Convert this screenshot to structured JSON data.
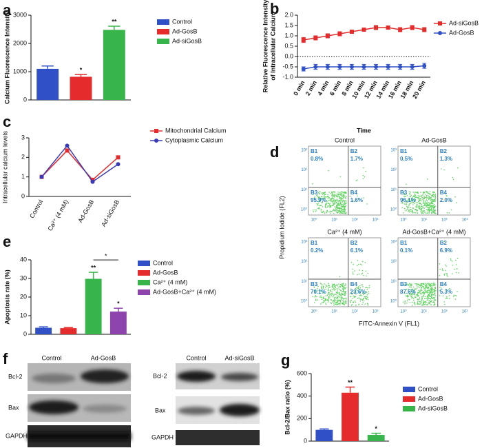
{
  "chart_data": [
    {
      "panel": "a",
      "type": "bar",
      "ylabel": "Calcium Fluorescence Intensity",
      "ylim": [
        0,
        3000
      ],
      "yticks": [
        0,
        1000,
        2000,
        3000
      ],
      "series": [
        {
          "name": "Control",
          "color": "#3050c8",
          "values": [
            1100
          ],
          "errors": [
            100
          ]
        },
        {
          "name": "Ad-GosB",
          "color": "#e52b2b",
          "values": [
            820
          ],
          "errors": [
            80
          ],
          "annotation": "*"
        },
        {
          "name": "Ad-siGosB",
          "color": "#38b54a",
          "values": [
            2480
          ],
          "errors": [
            130
          ],
          "annotation": "**"
        }
      ]
    },
    {
      "panel": "b",
      "type": "line",
      "ylabel": [
        "Relative Fluorescence Intensity",
        "of Intracellular Calcium"
      ],
      "xlabel": "Time",
      "categories": [
        "0 min",
        "2 min",
        "4 min",
        "6 min",
        "8 min",
        "10 min",
        "12 min",
        "14 min",
        "16 min",
        "18 min",
        "20 min"
      ],
      "ylim": [
        -1,
        2
      ],
      "yticks": [
        {
          "value": -1,
          "label": "-1.0"
        },
        {
          "value": -0.5,
          "label": "-0.5"
        },
        {
          "value": 0,
          "label": "0.0"
        },
        0.5,
        {
          "value": 1,
          "label": "1.0"
        },
        1.5,
        {
          "value": 2,
          "label": "2.0"
        }
      ],
      "zero_line": true,
      "series": [
        {
          "name": "Ad-siGosB",
          "color": "#e52b2b",
          "marker": "square",
          "values": [
            0.8,
            0.9,
            1.0,
            1.1,
            1.2,
            1.3,
            1.4,
            1.4,
            1.3,
            1.4,
            1.3
          ],
          "errors": [
            0.12,
            0.1,
            0.1,
            0.1,
            0.08,
            0.08,
            0.1,
            0.08,
            0.1,
            0.1,
            0.1
          ]
        },
        {
          "name": "Ad-GosB",
          "color": "#3050c8",
          "marker": "circle",
          "values": [
            -0.6,
            -0.5,
            -0.5,
            -0.5,
            -0.5,
            -0.5,
            -0.5,
            -0.5,
            -0.5,
            -0.5,
            -0.45
          ],
          "errors": [
            0.1,
            0.12,
            0.12,
            0.12,
            0.12,
            0.12,
            0.12,
            0.12,
            0.12,
            0.12,
            0.12
          ]
        }
      ]
    },
    {
      "panel": "c",
      "type": "line",
      "ylabel": "Intracellular calcium levels",
      "categories": [
        "Control",
        "Ca²⁺ (4 mM)",
        "Ad-GosB",
        "Ad-siGosB"
      ],
      "ylim": [
        0,
        3
      ],
      "yticks": [
        0,
        1,
        2,
        3
      ],
      "series": [
        {
          "name": "Mitochondrial Calcium",
          "color": "#e52b2b",
          "marker": "square",
          "values": [
            1,
            2.35,
            0.85,
            2.0
          ]
        },
        {
          "name": "Cytoplasmic Calcium",
          "color": "#3a3ab8",
          "marker": "circle",
          "values": [
            1,
            2.6,
            0.75,
            1.65
          ]
        }
      ]
    },
    {
      "panel": "e",
      "type": "bar",
      "ylabel": "Apoptosis rate (%)",
      "ylim": [
        0,
        40
      ],
      "yticks": [
        0,
        10,
        20,
        30,
        40
      ],
      "bracket_label": "*",
      "series": [
        {
          "name": "Control",
          "color": "#3050c8",
          "values": [
            3.5
          ],
          "errors": [
            0.5
          ]
        },
        {
          "name": "Ad-GosB",
          "color": "#e52b2b",
          "values": [
            3.3
          ],
          "errors": [
            0.3
          ]
        },
        {
          "name": "Ca²⁺ (4 mM)",
          "color": "#38b54a",
          "values": [
            29.8
          ],
          "errors": [
            3.5
          ],
          "annotation": "**"
        },
        {
          "name": "Ad-GosB+Ca²⁺ (4 mM)",
          "color": "#8e44ad",
          "values": [
            12.2
          ],
          "errors": [
            1.8
          ],
          "annotation": "*"
        }
      ]
    },
    {
      "panel": "g",
      "type": "bar",
      "ylabel": "Bcl-2/Bax ratio (%)",
      "ylim": [
        0,
        600
      ],
      "yticks": [
        0,
        200,
        400,
        600
      ],
      "series": [
        {
          "name": "Control",
          "color": "#3050c8",
          "values": [
            100
          ],
          "errors": [
            8
          ]
        },
        {
          "name": "Ad-GosB",
          "color": "#e52b2b",
          "values": [
            430
          ],
          "errors": [
            50
          ],
          "annotation": "**"
        },
        {
          "name": "Ad-siGosB",
          "color": "#38b54a",
          "values": [
            55
          ],
          "errors": [
            15
          ],
          "annotation": "*"
        }
      ]
    }
  ],
  "flow": {
    "panel": "d",
    "ylabel": "Propidium Iodide (FL2)",
    "xlabel": "FITC-Annexin V (FL1)",
    "ticks": [
      "10⁰",
      "10¹",
      "10²",
      "10³"
    ],
    "plots": [
      {
        "title": "Control",
        "quadrants": [
          {
            "name": "B1",
            "value": "0.8%"
          },
          {
            "name": "B2",
            "value": "1.7%"
          },
          {
            "name": "B3",
            "value": "95.9%"
          },
          {
            "name": "B4",
            "value": "1.6%"
          }
        ]
      },
      {
        "title": "Ad-GosB",
        "quadrants": [
          {
            "name": "B1",
            "value": "0.5%"
          },
          {
            "name": "B2",
            "value": "1.3%"
          },
          {
            "name": "B3",
            "value": "96.1%"
          },
          {
            "name": "B4",
            "value": "2.0%"
          }
        ]
      },
      {
        "title": "Ca²⁺ (4 mM)",
        "quadrants": [
          {
            "name": "B1",
            "value": "0.2%"
          },
          {
            "name": "B2",
            "value": "6.1%"
          },
          {
            "name": "B3",
            "value": "70.1%"
          },
          {
            "name": "B4",
            "value": "23.6%"
          }
        ]
      },
      {
        "title": "Ad-GosB+Ca²⁺ (4 mM)",
        "quadrants": [
          {
            "name": "B1",
            "value": "0.1%"
          },
          {
            "name": "B2",
            "value": "6.9%"
          },
          {
            "name": "B3",
            "value": "87.6%"
          },
          {
            "name": "B4",
            "value": "5.3%"
          }
        ]
      }
    ]
  },
  "blots": {
    "panel": "f",
    "left": {
      "columns": [
        "Control",
        "Ad-GosB"
      ],
      "rows": [
        "Bcl-2",
        "Bax",
        "GAPDH"
      ]
    },
    "right": {
      "columns": [
        "Control",
        "Ad-siGosB"
      ],
      "rows": [
        "Bcl-2",
        "Bax",
        "GAPDH"
      ]
    }
  }
}
